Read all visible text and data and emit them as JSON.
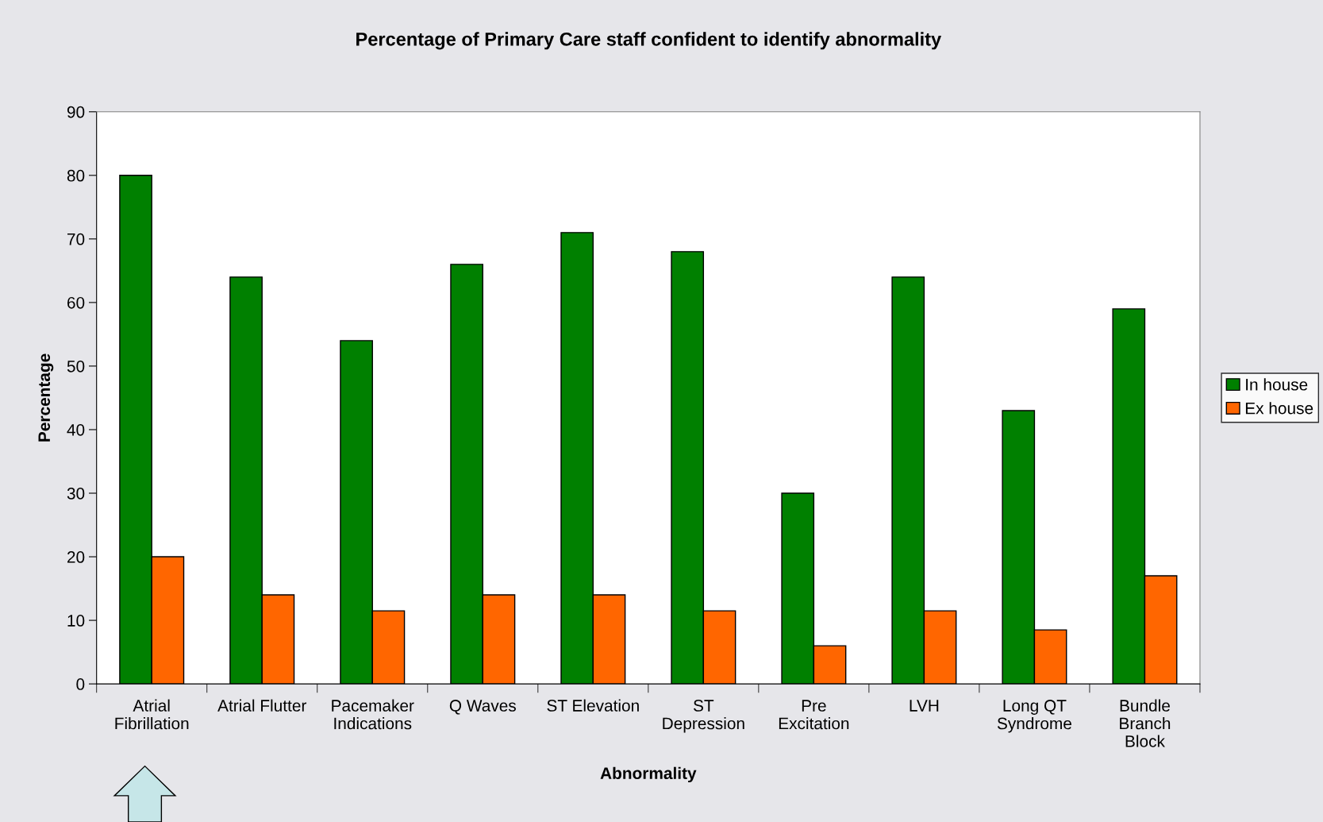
{
  "chart_data": {
    "type": "bar",
    "title": "Percentage of Primary Care staff confident to identify abnormality",
    "xlabel": "Abnormality",
    "ylabel": "Percentage",
    "categories": [
      "Atrial\nFibrillation",
      "Atrial Flutter",
      "Pacemaker\nIndications",
      "Q Waves",
      "ST Elevation",
      "ST\nDepression",
      "Pre\nExcitation",
      "LVH",
      "Long QT\nSyndrome",
      "Bundle\nBranch\nBlock"
    ],
    "series": [
      {
        "name": "In house",
        "color": "#008000",
        "values": [
          80,
          64,
          54,
          66,
          71,
          68,
          30,
          64,
          43,
          59
        ]
      },
      {
        "name": "Ex house",
        "color": "#ff6600",
        "values": [
          20,
          14,
          11.5,
          14,
          14,
          11.5,
          6,
          11.5,
          8.5,
          17
        ]
      }
    ],
    "ylim": [
      0,
      90
    ],
    "yticks": [
      0,
      10,
      20,
      30,
      40,
      50,
      60,
      70,
      80,
      90
    ],
    "grid": false,
    "legend": "right"
  }
}
